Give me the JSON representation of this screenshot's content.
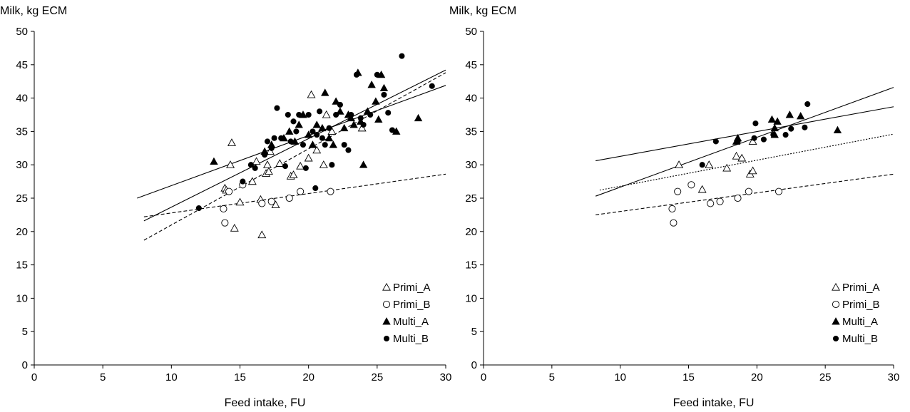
{
  "chart_data": [
    {
      "type": "scatter",
      "ylabel": "Milk, kg ECM",
      "xlabel": "Feed intake, FU",
      "xlim": [
        0,
        30
      ],
      "ylim": [
        0,
        50
      ],
      "xticks": [
        "0",
        "5",
        "10",
        "15",
        "20",
        "25",
        "30"
      ],
      "yticks": [
        "0",
        "5",
        "10",
        "15",
        "20",
        "25",
        "30",
        "35",
        "40",
        "45",
        "50"
      ],
      "legend_position": "bottom-right",
      "series": [
        {
          "name": "Primi_A",
          "marker": "triangle-open",
          "points": [
            [
              13.9,
              26.5
            ],
            [
              14.0,
              26.2
            ],
            [
              14.3,
              30.0
            ],
            [
              14.4,
              33.3
            ],
            [
              14.6,
              20.5
            ],
            [
              15.0,
              24.4
            ],
            [
              15.9,
              27.5
            ],
            [
              16.2,
              30.5
            ],
            [
              16.5,
              24.8
            ],
            [
              16.6,
              19.5
            ],
            [
              16.9,
              28.7
            ],
            [
              17.0,
              30.0
            ],
            [
              17.1,
              29.0
            ],
            [
              17.2,
              32.0
            ],
            [
              17.6,
              24.0
            ],
            [
              17.9,
              30.2
            ],
            [
              18.7,
              28.3
            ],
            [
              18.9,
              28.5
            ],
            [
              19.4,
              29.8
            ],
            [
              20.0,
              31.0
            ],
            [
              20.2,
              40.5
            ],
            [
              20.6,
              32.2
            ],
            [
              21.1,
              30.0
            ],
            [
              21.3,
              37.5
            ],
            [
              21.7,
              35.0
            ],
            [
              23.9,
              35.5
            ]
          ]
        },
        {
          "name": "Primi_B",
          "marker": "circle-open",
          "points": [
            [
              13.8,
              23.4
            ],
            [
              13.9,
              21.3
            ],
            [
              14.2,
              26.0
            ],
            [
              15.2,
              27.0
            ],
            [
              16.6,
              24.2
            ],
            [
              17.3,
              24.5
            ],
            [
              18.6,
              25.0
            ],
            [
              19.4,
              26.0
            ],
            [
              21.6,
              26.0
            ]
          ]
        },
        {
          "name": "Multi_A",
          "marker": "triangle-filled",
          "points": [
            [
              13.1,
              30.5
            ],
            [
              16.8,
              32.0
            ],
            [
              17.3,
              33.0
            ],
            [
              18.2,
              34.0
            ],
            [
              18.6,
              35.0
            ],
            [
              19.0,
              33.5
            ],
            [
              19.3,
              36.0
            ],
            [
              19.6,
              37.5
            ],
            [
              20.0,
              34.5
            ],
            [
              20.3,
              33.0
            ],
            [
              20.6,
              36.0
            ],
            [
              21.0,
              35.5
            ],
            [
              21.2,
              40.8
            ],
            [
              21.5,
              34.0
            ],
            [
              21.8,
              33.0
            ],
            [
              22.0,
              39.5
            ],
            [
              22.3,
              38.0
            ],
            [
              22.6,
              35.5
            ],
            [
              22.9,
              37.5
            ],
            [
              23.1,
              37.0
            ],
            [
              23.3,
              36.0
            ],
            [
              23.6,
              43.8
            ],
            [
              23.8,
              36.5
            ],
            [
              24.0,
              30.0
            ],
            [
              24.3,
              38.0
            ],
            [
              24.6,
              42.0
            ],
            [
              24.9,
              39.5
            ],
            [
              25.1,
              36.8
            ],
            [
              25.3,
              43.5
            ],
            [
              25.5,
              41.5
            ],
            [
              26.4,
              35.0
            ],
            [
              28.0,
              37.0
            ]
          ]
        },
        {
          "name": "Multi_B",
          "marker": "circle-filled",
          "points": [
            [
              12.0,
              23.5
            ],
            [
              15.2,
              27.5
            ],
            [
              15.8,
              30.0
            ],
            [
              16.1,
              29.5
            ],
            [
              16.8,
              31.5
            ],
            [
              17.0,
              33.5
            ],
            [
              17.3,
              32.5
            ],
            [
              17.5,
              34.0
            ],
            [
              17.7,
              38.5
            ],
            [
              18.0,
              34.0
            ],
            [
              18.3,
              29.8
            ],
            [
              18.5,
              37.5
            ],
            [
              18.7,
              33.5
            ],
            [
              18.9,
              36.5
            ],
            [
              19.1,
              35.0
            ],
            [
              19.3,
              37.5
            ],
            [
              19.6,
              33.0
            ],
            [
              19.8,
              29.5
            ],
            [
              20.0,
              37.5
            ],
            [
              20.3,
              35.0
            ],
            [
              20.6,
              34.5
            ],
            [
              20.8,
              38.0
            ],
            [
              21.0,
              34.0
            ],
            [
              21.2,
              33.0
            ],
            [
              21.5,
              35.5
            ],
            [
              21.7,
              30.0
            ],
            [
              22.0,
              37.5
            ],
            [
              22.3,
              39.0
            ],
            [
              22.6,
              33.0
            ],
            [
              22.9,
              32.2
            ],
            [
              23.1,
              37.5
            ],
            [
              23.5,
              43.5
            ],
            [
              23.8,
              37.0
            ],
            [
              24.0,
              36.0
            ],
            [
              24.5,
              37.5
            ],
            [
              25.0,
              43.5
            ],
            [
              25.5,
              40.5
            ],
            [
              25.8,
              37.8
            ],
            [
              26.1,
              35.2
            ],
            [
              26.8,
              46.3
            ],
            [
              29.0,
              41.8
            ],
            [
              20.5,
              26.5
            ]
          ]
        }
      ],
      "trendlines": [
        {
          "style": "solid",
          "x": [
            7.5,
            30
          ],
          "y": [
            25.0,
            41.9
          ]
        },
        {
          "style": "solid",
          "x": [
            8.0,
            30
          ],
          "y": [
            21.6,
            44.2
          ]
        },
        {
          "style": "dashed",
          "x": [
            8.0,
            30
          ],
          "y": [
            18.7,
            43.8
          ]
        },
        {
          "style": "dashed",
          "x": [
            8.0,
            30
          ],
          "y": [
            22.2,
            28.6
          ]
        }
      ]
    },
    {
      "type": "scatter",
      "ylabel": "Milk, kg ECM",
      "xlabel": "Feed intake, FU",
      "xlim": [
        0,
        30
      ],
      "ylim": [
        0,
        50
      ],
      "xticks": [
        "0",
        "5",
        "10",
        "15",
        "20",
        "25",
        "30"
      ],
      "yticks": [
        "0",
        "5",
        "10",
        "15",
        "20",
        "25",
        "30",
        "35",
        "40",
        "45",
        "50"
      ],
      "legend_position": "bottom-right",
      "series": [
        {
          "name": "Primi_A",
          "marker": "triangle-open",
          "points": [
            [
              14.3,
              30.0
            ],
            [
              16.0,
              26.3
            ],
            [
              16.5,
              30.0
            ],
            [
              17.8,
              29.5
            ],
            [
              18.5,
              31.3
            ],
            [
              18.9,
              31.0
            ],
            [
              19.5,
              28.6
            ],
            [
              19.7,
              29.1
            ],
            [
              19.7,
              33.5
            ]
          ]
        },
        {
          "name": "Primi_B",
          "marker": "circle-open",
          "points": [
            [
              13.8,
              23.4
            ],
            [
              13.9,
              21.3
            ],
            [
              14.2,
              26.0
            ],
            [
              15.2,
              27.0
            ],
            [
              16.6,
              24.2
            ],
            [
              17.3,
              24.5
            ],
            [
              18.6,
              25.0
            ],
            [
              19.4,
              26.0
            ],
            [
              21.6,
              26.0
            ]
          ]
        },
        {
          "name": "Multi_A",
          "marker": "triangle-filled",
          "points": [
            [
              18.5,
              33.5
            ],
            [
              18.6,
              34.0
            ],
            [
              21.1,
              36.8
            ],
            [
              21.3,
              35.5
            ],
            [
              21.3,
              34.5
            ],
            [
              21.5,
              36.5
            ],
            [
              22.4,
              37.5
            ],
            [
              23.2,
              37.3
            ],
            [
              25.9,
              35.2
            ]
          ]
        },
        {
          "name": "Multi_B",
          "marker": "circle-filled",
          "points": [
            [
              16.0,
              30.0
            ],
            [
              17.0,
              33.5
            ],
            [
              18.6,
              33.5
            ],
            [
              19.8,
              34.0
            ],
            [
              19.9,
              36.2
            ],
            [
              20.5,
              33.8
            ],
            [
              21.2,
              34.5
            ],
            [
              22.1,
              34.5
            ],
            [
              22.5,
              35.4
            ],
            [
              23.5,
              35.6
            ],
            [
              23.7,
              39.1
            ]
          ]
        }
      ],
      "trendlines": [
        {
          "style": "solid",
          "x": [
            8.2,
            30
          ],
          "y": [
            30.6,
            38.7
          ]
        },
        {
          "style": "solid",
          "x": [
            8.2,
            30
          ],
          "y": [
            25.3,
            41.6
          ]
        },
        {
          "style": "dotted",
          "x": [
            8.5,
            30
          ],
          "y": [
            26.2,
            34.6
          ]
        },
        {
          "style": "dashed",
          "x": [
            8.2,
            30
          ],
          "y": [
            22.5,
            28.6
          ]
        }
      ]
    }
  ]
}
